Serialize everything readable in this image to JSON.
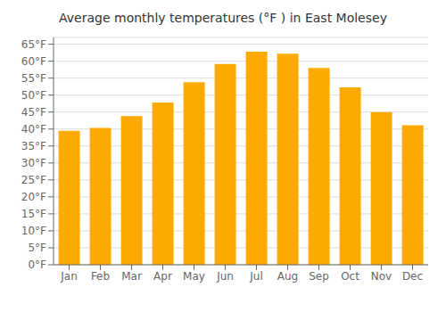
{
  "chart_data": {
    "type": "bar",
    "title": "Average monthly temperatures (°F ) in East Molesey",
    "categories": [
      "Jan",
      "Feb",
      "Mar",
      "Apr",
      "May",
      "Jun",
      "Jul",
      "Aug",
      "Sep",
      "Oct",
      "Nov",
      "Dec"
    ],
    "values": [
      39.5,
      40.3,
      43.8,
      47.8,
      53.8,
      59.2,
      62.8,
      62.2,
      58.0,
      52.3,
      45.0,
      41.1
    ],
    "color": "#FFAA00",
    "ylim": [
      0,
      67
    ],
    "yticks": [
      {
        "value": 0,
        "label": "0°F"
      },
      {
        "value": 5,
        "label": "5°F"
      },
      {
        "value": 10,
        "label": "10°F"
      },
      {
        "value": 15,
        "label": "15°F"
      },
      {
        "value": 20,
        "label": "20°F"
      },
      {
        "value": 25,
        "label": "25°F"
      },
      {
        "value": 30,
        "label": "30°F"
      },
      {
        "value": 35,
        "label": "35°F"
      },
      {
        "value": 40,
        "label": "40°F"
      },
      {
        "value": 45,
        "label": "45°F"
      },
      {
        "value": 50,
        "label": "50°F"
      },
      {
        "value": 55,
        "label": "55°F"
      },
      {
        "value": 60,
        "label": "60°F"
      },
      {
        "value": 65,
        "label": "65°F"
      }
    ],
    "grid": true
  }
}
